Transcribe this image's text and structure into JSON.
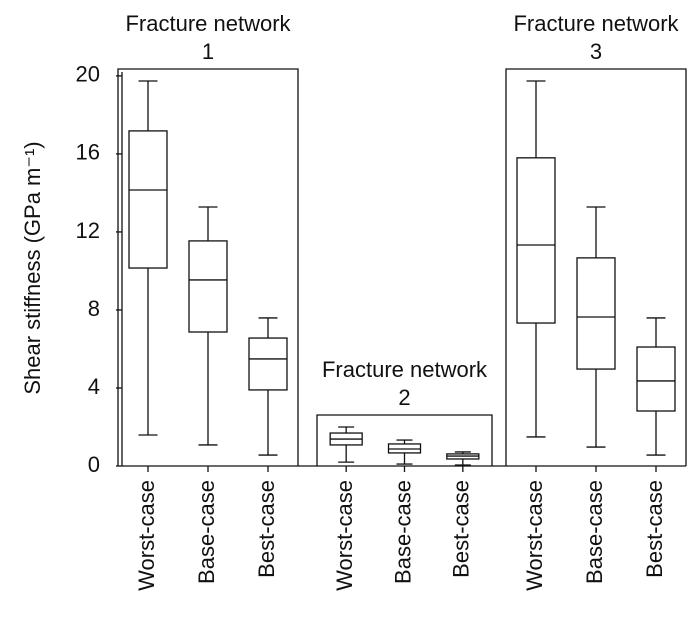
{
  "chart_data": {
    "type": "box",
    "ylabel": "Shear stiffness (GPa m⁻¹)",
    "ylim": [
      0,
      20.2
    ],
    "yticks": [
      0,
      4,
      8,
      12,
      16,
      20
    ],
    "groups": [
      {
        "label": "Fracture network",
        "number": "1",
        "categories": [
          "Worst-case",
          "Base-case",
          "Best-case"
        ],
        "boxes": [
          {
            "whislo": 1.59,
            "q1": 10.15,
            "med": 14.15,
            "q3": 17.18,
            "whishi": 19.74
          },
          {
            "whislo": 1.08,
            "q1": 6.87,
            "med": 9.54,
            "q3": 11.54,
            "whishi": 13.28
          },
          {
            "whislo": 0.56,
            "q1": 3.9,
            "med": 5.49,
            "q3": 6.56,
            "whishi": 7.59
          }
        ]
      },
      {
        "label": "Fracture network",
        "number": "2",
        "categories": [
          "Worst-case",
          "Base-case",
          "Best-case"
        ],
        "boxes": [
          {
            "whislo": 0.2,
            "q1": 1.08,
            "med": 1.38,
            "q3": 1.69,
            "whishi": 2.0
          },
          {
            "whislo": 0.1,
            "q1": 0.67,
            "med": 0.87,
            "q3": 1.13,
            "whishi": 1.33
          },
          {
            "whislo": 0.05,
            "q1": 0.36,
            "med": 0.51,
            "q3": 0.62,
            "whishi": 0.72
          }
        ]
      },
      {
        "label": "Fracture network",
        "number": "3",
        "categories": [
          "Worst-case",
          "Base-case",
          "Best-case"
        ],
        "boxes": [
          {
            "whislo": 1.49,
            "q1": 7.33,
            "med": 11.33,
            "q3": 15.8,
            "whishi": 19.74
          },
          {
            "whislo": 0.97,
            "q1": 4.97,
            "med": 7.64,
            "q3": 10.67,
            "whishi": 13.28
          },
          {
            "whislo": 0.56,
            "q1": 2.82,
            "med": 4.36,
            "q3": 6.1,
            "whishi": 7.59
          }
        ]
      }
    ]
  }
}
